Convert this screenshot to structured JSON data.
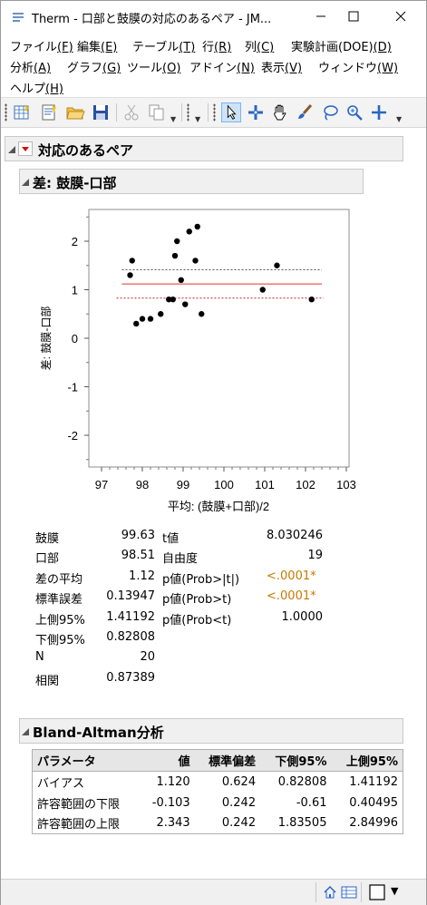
{
  "window": {
    "title": "Therm - 口部と鼓膜の対応のあるペア - JM..."
  },
  "menu": {
    "row1": [
      {
        "label": "ファイル",
        "key": "(F)"
      },
      {
        "label": "編集",
        "key": "(E)"
      },
      {
        "label": "テーブル",
        "key": "(T)"
      },
      {
        "label": "行",
        "key": "(R)"
      },
      {
        "label": "列",
        "key": "(C)"
      },
      {
        "label": "実験計画(DOE)",
        "key": "(D)"
      }
    ],
    "row2": [
      {
        "label": "分析",
        "key": "(A)"
      },
      {
        "label": "グラフ",
        "key": "(G)"
      },
      {
        "label": "ツール",
        "key": "(O)"
      },
      {
        "label": "アドイン",
        "key": "(N)"
      },
      {
        "label": "表示",
        "key": "(V)"
      },
      {
        "label": "ウィンドウ",
        "key": "(W)"
      }
    ],
    "row3": [
      {
        "label": "ヘルプ",
        "key": "(H)"
      }
    ]
  },
  "report": {
    "main_title": "対応のあるペア",
    "diff_title": "差: 鼓膜-口部",
    "ba_title": "Bland-Altman分析"
  },
  "chart_data": {
    "type": "scatter",
    "xlabel": "平均: (鼓膜+口部)/2",
    "ylabel": "差: 鼓膜-口部",
    "xlim": [
      97,
      103
    ],
    "ylim": [
      -2.6,
      2.6
    ],
    "xticks": [
      "97",
      "98",
      "99",
      "100",
      "101",
      "102",
      "103"
    ],
    "yticks": [
      "2",
      "1",
      "0",
      "-1",
      "-2"
    ],
    "grid": false,
    "points": [
      {
        "x": 97.7,
        "y": 1.3
      },
      {
        "x": 97.75,
        "y": 1.6
      },
      {
        "x": 97.85,
        "y": 0.3
      },
      {
        "x": 98.0,
        "y": 0.4
      },
      {
        "x": 98.2,
        "y": 0.4
      },
      {
        "x": 98.45,
        "y": 0.5
      },
      {
        "x": 98.65,
        "y": 0.8
      },
      {
        "x": 98.75,
        "y": 0.8
      },
      {
        "x": 98.8,
        "y": 1.7
      },
      {
        "x": 98.85,
        "y": 2.0
      },
      {
        "x": 98.95,
        "y": 1.2
      },
      {
        "x": 99.05,
        "y": 0.7
      },
      {
        "x": 99.15,
        "y": 2.2
      },
      {
        "x": 99.3,
        "y": 1.6
      },
      {
        "x": 99.35,
        "y": 2.3
      },
      {
        "x": 99.45,
        "y": 0.5
      },
      {
        "x": 100.95,
        "y": 1.0
      },
      {
        "x": 101.3,
        "y": 1.5
      },
      {
        "x": 102.15,
        "y": 0.8
      }
    ],
    "mean_diff": 1.12,
    "upper95": 1.41192,
    "lower95": 0.82808,
    "line_xrange": [
      97.5,
      102.4
    ]
  },
  "stats": {
    "left": [
      {
        "label": "鼓膜",
        "value": "99.63"
      },
      {
        "label": "口部",
        "value": "98.51"
      },
      {
        "label": "差の平均",
        "value": "1.12"
      },
      {
        "label": "標準誤差",
        "value": "0.13947"
      },
      {
        "label": "上側95%",
        "value": "1.41192"
      },
      {
        "label": "下側95%",
        "value": "0.82808"
      },
      {
        "label": "N",
        "value": "20"
      },
      {
        "label": "相関",
        "value": "0.87389"
      }
    ],
    "right": [
      {
        "label": "t値",
        "value": "8.030246",
        "highlight": false
      },
      {
        "label": "自由度",
        "value": "19",
        "highlight": false
      },
      {
        "label": "p値(Prob>|t|)",
        "value": "<.0001*",
        "highlight": true
      },
      {
        "label": "p値(Prob>t)",
        "value": "<.0001*",
        "highlight": true
      },
      {
        "label": "p値(Prob<t)",
        "value": "1.0000",
        "highlight": false
      }
    ]
  },
  "ba_table": {
    "headers": [
      "パラメータ",
      "値",
      "標準偏差",
      "下側95%",
      "上側95%"
    ],
    "rows": [
      [
        "バイアス",
        "1.120",
        "0.624",
        "0.82808",
        "1.41192"
      ],
      [
        "許容範囲の下限",
        "-0.103",
        "0.242",
        "-0.61",
        "0.40495"
      ],
      [
        "許容範囲の上限",
        "2.343",
        "0.242",
        "1.83505",
        "2.84996"
      ]
    ]
  },
  "colors": {
    "mean_line": "#e03030",
    "upper_line": "#555555",
    "lower_line": "#cc2222",
    "pvalue": "#c87800",
    "disclosure_red": "#d01010"
  }
}
